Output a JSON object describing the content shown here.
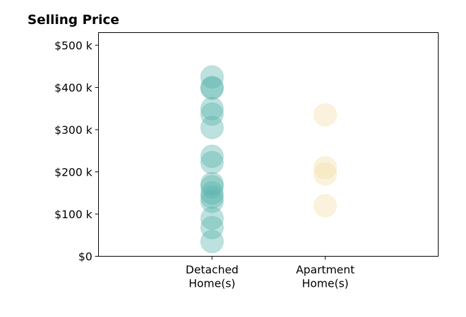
{
  "chart_data": {
    "type": "scatter",
    "title": "Selling Price",
    "xlabel": "",
    "ylabel": "",
    "categories": [
      "Detached\nHome(s)",
      "Apartment\nHome(s)"
    ],
    "ylim": [
      0,
      530000
    ],
    "yticks": [
      {
        "value": 0,
        "label": "$0"
      },
      {
        "value": 100000,
        "label": "$100 k"
      },
      {
        "value": 200000,
        "label": "$200 k"
      },
      {
        "value": 300000,
        "label": "$300 k"
      },
      {
        "value": 400000,
        "label": "$400 k"
      },
      {
        "value": 500000,
        "label": "$500 k"
      }
    ],
    "grid": false,
    "legend": "none",
    "series": [
      {
        "category": "Detached\nHome(s)",
        "color": "#5ab4ac",
        "values": [
          425000,
          400000,
          398000,
          350000,
          337000,
          305000,
          237000,
          222000,
          172000,
          165000,
          150000,
          140000,
          130000,
          90000,
          68000,
          35000
        ]
      },
      {
        "category": "Apartment\nHome(s)",
        "color": "#f2dfa7",
        "values": [
          335000,
          210000,
          195000,
          120000
        ]
      }
    ]
  }
}
